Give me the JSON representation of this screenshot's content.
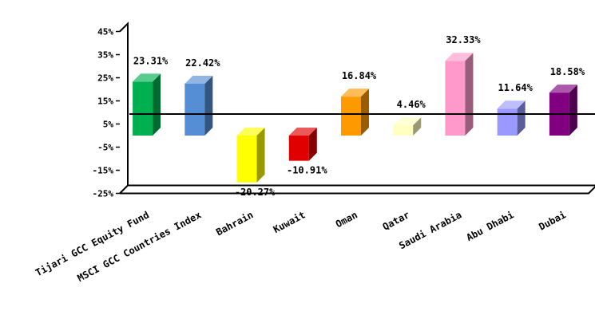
{
  "chart_data": {
    "type": "bar",
    "style": "3d",
    "categories": [
      "Tijari GCC Equity Fund",
      "MSCI GCC Countries Index",
      "Bahrain",
      "Kuwait",
      "Oman",
      "Qatar",
      "Saudi Arabia",
      "Abu Dhabi",
      "Dubai"
    ],
    "values": [
      23.31,
      22.42,
      -20.27,
      -10.91,
      16.84,
      4.46,
      32.33,
      11.64,
      18.58
    ],
    "data_labels": [
      "23.31%",
      "22.42%",
      "-20.27%",
      "-10.91%",
      "16.84%",
      "4.46%",
      "32.33%",
      "11.64%",
      "18.58%"
    ],
    "colors": [
      "#00b050",
      "#558ed5",
      "#ffff00",
      "#e00000",
      "#ff9900",
      "#ffffc0",
      "#ff99cc",
      "#9999ff",
      "#800080"
    ],
    "y_ticks": [
      "45%",
      "35%",
      "25%",
      "15%",
      "5%",
      "-5%",
      "-15%",
      "-25%"
    ],
    "ylim": [
      -25,
      45
    ],
    "grid": false,
    "legend": "none",
    "title": "",
    "xlabel": "",
    "ylabel": ""
  }
}
